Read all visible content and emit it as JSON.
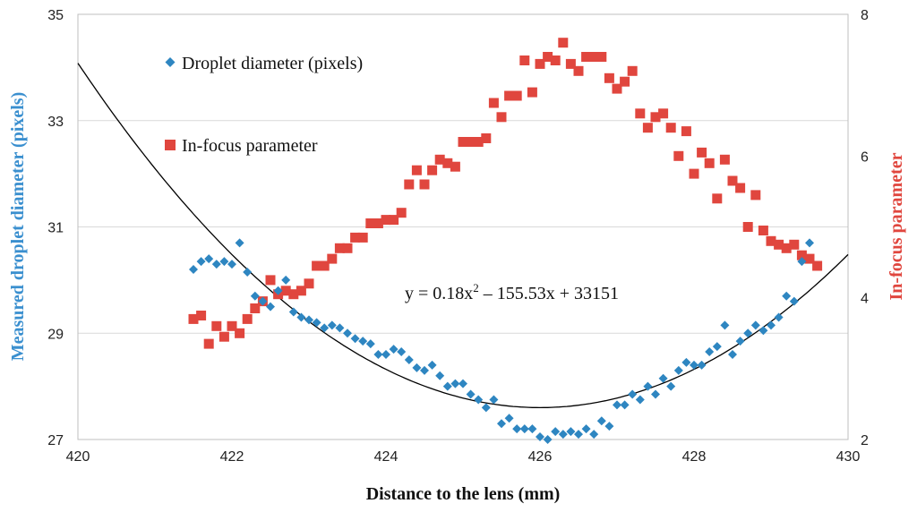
{
  "chart_data": {
    "type": "scatter",
    "xlabel": "Distance to the lens (mm)",
    "ylabel_left": "Measured droplet diameter (pixels)",
    "ylabel_right": "In-focus parameter",
    "xlim": [
      420,
      430
    ],
    "ylim_left": [
      27,
      35
    ],
    "ylim_right": [
      2,
      8
    ],
    "x_ticks": [
      "420",
      "422",
      "424",
      "426",
      "428",
      "430"
    ],
    "y_left_ticks": [
      "27",
      "29",
      "31",
      "33",
      "35"
    ],
    "y_right_ticks": [
      "2",
      "4",
      "6",
      "8"
    ],
    "grid": true,
    "legend_position": "top-left",
    "colors": {
      "diameter": "#2E86C1",
      "focus": "#E0463E",
      "trend": "#000000",
      "left_label": "#3A8FCF",
      "right_label": "#E0463E"
    },
    "trendline": {
      "equation_display": "y = 0.18x² – 155.53x + 33151",
      "eq_prefix": "y = 0.18x",
      "eq_sup": "2",
      "eq_suffix": " – 155.53x + 33151",
      "a": 0.18,
      "vertex_x": 426,
      "vertex_y": 27.6,
      "axis": "left"
    },
    "series": [
      {
        "name": "Droplet diameter (pixels)",
        "marker": "diamond",
        "axis": "left",
        "points": [
          [
            421.5,
            30.2
          ],
          [
            421.6,
            30.35
          ],
          [
            421.7,
            30.4
          ],
          [
            421.8,
            30.3
          ],
          [
            421.9,
            30.35
          ],
          [
            422.0,
            30.3
          ],
          [
            422.1,
            30.7
          ],
          [
            422.2,
            30.15
          ],
          [
            422.3,
            29.7
          ],
          [
            422.4,
            29.6
          ],
          [
            422.5,
            29.5
          ],
          [
            422.6,
            29.8
          ],
          [
            422.7,
            30.0
          ],
          [
            422.8,
            29.4
          ],
          [
            422.9,
            29.3
          ],
          [
            423.0,
            29.25
          ],
          [
            423.1,
            29.2
          ],
          [
            423.2,
            29.1
          ],
          [
            423.3,
            29.15
          ],
          [
            423.4,
            29.1
          ],
          [
            423.5,
            29.0
          ],
          [
            423.6,
            28.9
          ],
          [
            423.7,
            28.85
          ],
          [
            423.8,
            28.8
          ],
          [
            423.9,
            28.6
          ],
          [
            424.0,
            28.6
          ],
          [
            424.1,
            28.7
          ],
          [
            424.2,
            28.65
          ],
          [
            424.3,
            28.5
          ],
          [
            424.4,
            28.35
          ],
          [
            424.5,
            28.3
          ],
          [
            424.6,
            28.4
          ],
          [
            424.7,
            28.2
          ],
          [
            424.8,
            28.0
          ],
          [
            424.9,
            28.05
          ],
          [
            425.0,
            28.05
          ],
          [
            425.1,
            27.85
          ],
          [
            425.2,
            27.75
          ],
          [
            425.3,
            27.6
          ],
          [
            425.4,
            27.75
          ],
          [
            425.5,
            27.3
          ],
          [
            425.6,
            27.4
          ],
          [
            425.7,
            27.2
          ],
          [
            425.8,
            27.2
          ],
          [
            425.9,
            27.2
          ],
          [
            426.0,
            27.05
          ],
          [
            426.1,
            27.0
          ],
          [
            426.2,
            27.15
          ],
          [
            426.3,
            27.1
          ],
          [
            426.4,
            27.15
          ],
          [
            426.5,
            27.1
          ],
          [
            426.6,
            27.2
          ],
          [
            426.7,
            27.1
          ],
          [
            426.8,
            27.35
          ],
          [
            426.9,
            27.25
          ],
          [
            427.0,
            27.65
          ],
          [
            427.1,
            27.65
          ],
          [
            427.2,
            27.85
          ],
          [
            427.3,
            27.75
          ],
          [
            427.4,
            28.0
          ],
          [
            427.5,
            27.85
          ],
          [
            427.6,
            28.15
          ],
          [
            427.7,
            28.0
          ],
          [
            427.8,
            28.3
          ],
          [
            427.9,
            28.45
          ],
          [
            428.0,
            28.4
          ],
          [
            428.1,
            28.4
          ],
          [
            428.2,
            28.65
          ],
          [
            428.3,
            28.75
          ],
          [
            428.4,
            29.15
          ],
          [
            428.5,
            28.6
          ],
          [
            428.6,
            28.85
          ],
          [
            428.7,
            29.0
          ],
          [
            428.8,
            29.15
          ],
          [
            428.9,
            29.05
          ],
          [
            429.0,
            29.15
          ],
          [
            429.1,
            29.3
          ],
          [
            429.2,
            29.7
          ],
          [
            429.3,
            29.6
          ],
          [
            429.4,
            30.35
          ],
          [
            429.5,
            30.7
          ]
        ]
      },
      {
        "name": "In-focus parameter",
        "marker": "square",
        "axis": "right",
        "points": [
          [
            421.5,
            3.7
          ],
          [
            421.6,
            3.75
          ],
          [
            421.7,
            3.35
          ],
          [
            421.8,
            3.6
          ],
          [
            421.9,
            3.45
          ],
          [
            422.0,
            3.6
          ],
          [
            422.1,
            3.5
          ],
          [
            422.2,
            3.7
          ],
          [
            422.3,
            3.85
          ],
          [
            422.4,
            3.95
          ],
          [
            422.5,
            4.25
          ],
          [
            422.6,
            4.05
          ],
          [
            422.7,
            4.1
          ],
          [
            422.8,
            4.05
          ],
          [
            422.9,
            4.1
          ],
          [
            423.0,
            4.2
          ],
          [
            423.1,
            4.45
          ],
          [
            423.2,
            4.45
          ],
          [
            423.3,
            4.55
          ],
          [
            423.4,
            4.7
          ],
          [
            423.5,
            4.7
          ],
          [
            423.6,
            4.85
          ],
          [
            423.7,
            4.85
          ],
          [
            423.8,
            5.05
          ],
          [
            423.9,
            5.05
          ],
          [
            424.0,
            5.1
          ],
          [
            424.1,
            5.1
          ],
          [
            424.2,
            5.2
          ],
          [
            424.3,
            5.6
          ],
          [
            424.4,
            5.8
          ],
          [
            424.5,
            5.6
          ],
          [
            424.6,
            5.8
          ],
          [
            424.7,
            5.95
          ],
          [
            424.8,
            5.9
          ],
          [
            424.9,
            5.85
          ],
          [
            425.0,
            6.2
          ],
          [
            425.1,
            6.2
          ],
          [
            425.2,
            6.2
          ],
          [
            425.3,
            6.25
          ],
          [
            425.4,
            6.75
          ],
          [
            425.5,
            6.55
          ],
          [
            425.6,
            6.85
          ],
          [
            425.7,
            6.85
          ],
          [
            425.8,
            7.35
          ],
          [
            425.9,
            6.9
          ],
          [
            426.0,
            7.3
          ],
          [
            426.1,
            7.4
          ],
          [
            426.2,
            7.35
          ],
          [
            426.3,
            7.6
          ],
          [
            426.4,
            7.3
          ],
          [
            426.5,
            7.2
          ],
          [
            426.6,
            7.4
          ],
          [
            426.7,
            7.4
          ],
          [
            426.8,
            7.4
          ],
          [
            426.9,
            7.1
          ],
          [
            427.0,
            6.95
          ],
          [
            427.1,
            7.05
          ],
          [
            427.2,
            7.2
          ],
          [
            427.3,
            6.6
          ],
          [
            427.4,
            6.4
          ],
          [
            427.5,
            6.55
          ],
          [
            427.6,
            6.6
          ],
          [
            427.7,
            6.4
          ],
          [
            427.8,
            6.0
          ],
          [
            427.9,
            6.35
          ],
          [
            428.0,
            5.75
          ],
          [
            428.1,
            6.05
          ],
          [
            428.2,
            5.9
          ],
          [
            428.3,
            5.4
          ],
          [
            428.4,
            5.95
          ],
          [
            428.5,
            5.65
          ],
          [
            428.6,
            5.55
          ],
          [
            428.7,
            5.0
          ],
          [
            428.8,
            5.45
          ],
          [
            428.9,
            4.95
          ],
          [
            429.0,
            4.8
          ],
          [
            429.1,
            4.75
          ],
          [
            429.2,
            4.7
          ],
          [
            429.3,
            4.75
          ],
          [
            429.4,
            4.6
          ],
          [
            429.5,
            4.55
          ],
          [
            429.6,
            4.45
          ]
        ]
      }
    ]
  }
}
